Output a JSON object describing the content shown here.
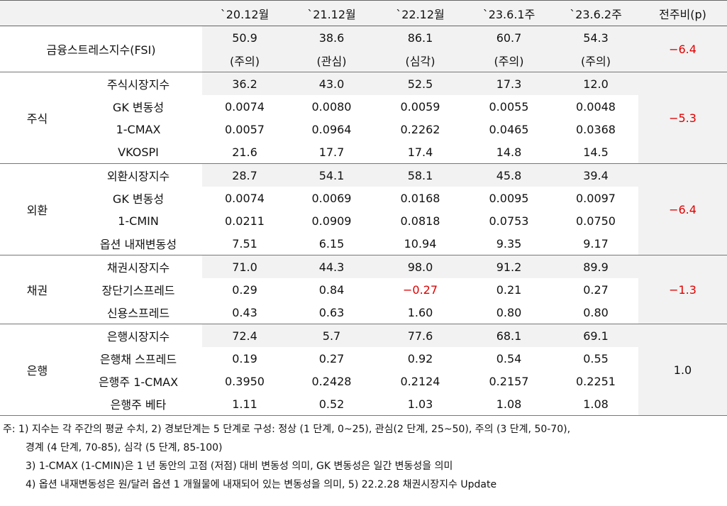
{
  "table": {
    "columns": [
      "`20.12월",
      "`21.12월",
      "`22.12월",
      "`23.6.1주",
      "`23.6.2주",
      "전주비(p)"
    ],
    "fsi": {
      "label": "금융스트레스지수(FSI)",
      "values": [
        "50.9",
        "38.6",
        "86.1",
        "60.7",
        "54.3"
      ],
      "status": [
        "(주의)",
        "(관심)",
        "(심각)",
        "(주의)",
        "(주의)"
      ],
      "change": "−6.4"
    },
    "sections": [
      {
        "name": "주식",
        "change": "−5.3",
        "rows": [
          {
            "label": "주식시장지수",
            "values": [
              "36.2",
              "43.0",
              "52.5",
              "17.3",
              "12.0"
            ]
          },
          {
            "label": "GK 변동성",
            "values": [
              "0.0074",
              "0.0080",
              "0.0059",
              "0.0055",
              "0.0048"
            ]
          },
          {
            "label": "1-CMAX",
            "values": [
              "0.0057",
              "0.0964",
              "0.2262",
              "0.0465",
              "0.0368"
            ]
          },
          {
            "label": "VKOSPI",
            "values": [
              "21.6",
              "17.7",
              "17.4",
              "14.8",
              "14.5"
            ]
          }
        ]
      },
      {
        "name": "외환",
        "change": "−6.4",
        "rows": [
          {
            "label": "외환시장지수",
            "values": [
              "28.7",
              "54.1",
              "58.1",
              "45.8",
              "39.4"
            ]
          },
          {
            "label": "GK 변동성",
            "values": [
              "0.0074",
              "0.0069",
              "0.0168",
              "0.0095",
              "0.0097"
            ]
          },
          {
            "label": "1-CMIN",
            "values": [
              "0.0211",
              "0.0909",
              "0.0818",
              "0.0753",
              "0.0750"
            ]
          },
          {
            "label": "옵션 내재변동성",
            "values": [
              "7.51",
              "6.15",
              "10.94",
              "9.35",
              "9.17"
            ]
          }
        ]
      },
      {
        "name": "채권",
        "change": "−1.3",
        "rows": [
          {
            "label": "채권시장지수",
            "values": [
              "71.0",
              "44.3",
              "98.0",
              "91.2",
              "89.9"
            ]
          },
          {
            "label": "장단기스프레드",
            "values": [
              "0.29",
              "0.84",
              "−0.27",
              "0.21",
              "0.27"
            ]
          },
          {
            "label": "신용스프레드",
            "values": [
              "0.43",
              "0.63",
              "1.60",
              "0.80",
              "0.80"
            ]
          }
        ]
      },
      {
        "name": "은행",
        "change": "1.0",
        "rows": [
          {
            "label": "은행시장지수",
            "values": [
              "72.4",
              "5.7",
              "77.6",
              "68.1",
              "69.1"
            ]
          },
          {
            "label": "은행채 스프레드",
            "values": [
              "0.19",
              "0.27",
              "0.92",
              "0.54",
              "0.55"
            ]
          },
          {
            "label": "은행주 1-CMAX",
            "values": [
              "0.3950",
              "0.2428",
              "0.2124",
              "0.2157",
              "0.2251"
            ]
          },
          {
            "label": "은행주 베타",
            "values": [
              "1.11",
              "0.52",
              "1.03",
              "1.08",
              "1.08"
            ]
          }
        ]
      }
    ]
  },
  "notes": [
    "주: 1) 지수는 각 주간의 평균 수치, 2) 경보단계는 5 단계로 구성: 정상 (1 단계, 0~25), 관심(2 단계, 25~50), 주의 (3 단계, 50-70),",
    "경계 (4 단계, 70-85), 심각 (5 단계, 85-100)",
    "3) 1-CMAX (1-CMIN)은 1 년 동안의 고점 (저점) 대비 변동성 의미, GK 변동성은 일간 변동성을 의미",
    "4) 옵션 내재변동성은 원/달러 옵션 1 개월물에 내재되어 있는 변동성을 의미, 5) 22.2.28 채권시장지수 Update"
  ]
}
